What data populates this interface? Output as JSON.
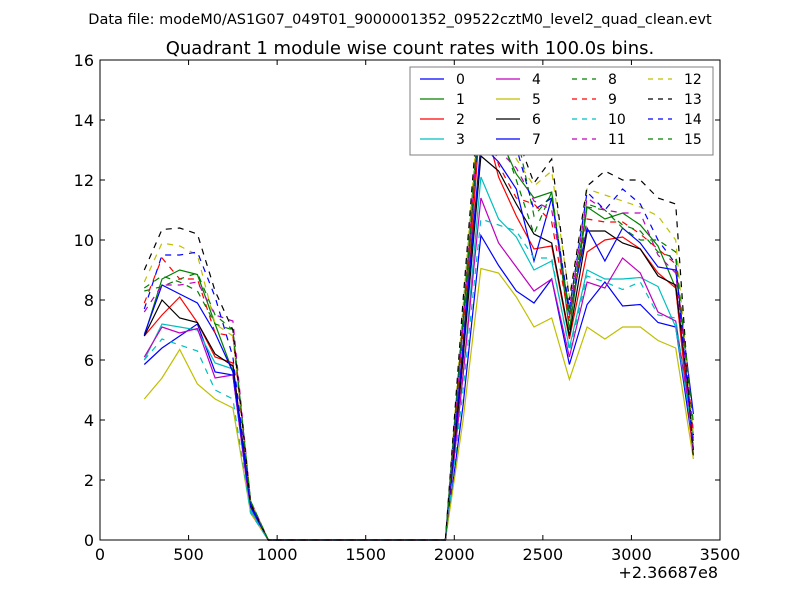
{
  "figure": {
    "suptitle": "Data file: modeM0/AS1G07_049T01_9000001352_09522cztM0_level2_quad_clean.evt",
    "title": "Quadrant 1 module wise count rates with 100.0s bins.",
    "x_offset_label": "+2.36687e8"
  },
  "chart_data": {
    "type": "line",
    "title": "Quadrant 1 module wise count rates with 100.0s bins.",
    "xlabel": "",
    "ylabel": "",
    "xlim": [
      0,
      3500
    ],
    "ylim": [
      0,
      16
    ],
    "x_ticks": [
      0,
      500,
      1000,
      1500,
      2000,
      2500,
      3000,
      3500
    ],
    "y_ticks": [
      0,
      2,
      4,
      6,
      8,
      10,
      12,
      14,
      16
    ],
    "x_tick_labels": [
      "0",
      "500",
      "1000",
      "1500",
      "2000",
      "2500",
      "3000",
      "3500"
    ],
    "y_tick_labels": [
      "0",
      "2",
      "4",
      "6",
      "8",
      "10",
      "12",
      "14",
      "16"
    ],
    "x_offset": "+2.36687e8",
    "grid": false,
    "legend_position": "top-right",
    "legend_columns": 4,
    "x": [
      250,
      350,
      450,
      550,
      650,
      750,
      850,
      950,
      1050,
      1150,
      1250,
      1350,
      1450,
      1550,
      1650,
      1750,
      1850,
      1950,
      2050,
      2150,
      2250,
      2350,
      2450,
      2550,
      2650,
      2750,
      2850,
      2950,
      3050,
      3150,
      3250,
      3350
    ],
    "series": [
      {
        "name": "0",
        "color": "#0000ff",
        "dash": "solid",
        "values": [
          5.85,
          6.4,
          6.8,
          7.2,
          5.6,
          5.5,
          1.0,
          0,
          0,
          0,
          0,
          0,
          0,
          0,
          0,
          0,
          0,
          0,
          4.5,
          10.15,
          9.15,
          8.3,
          7.9,
          8.7,
          5.85,
          7.85,
          8.6,
          7.8,
          7.85,
          7.25,
          7.1,
          3.0
        ]
      },
      {
        "name": "1",
        "color": "#008000",
        "dash": "solid",
        "values": [
          6.8,
          8.7,
          9.0,
          8.85,
          7.2,
          5.6,
          1.2,
          0,
          0,
          0,
          0,
          0,
          0,
          0,
          0,
          0,
          0,
          0,
          6.5,
          15.0,
          13.5,
          12.2,
          11.4,
          11.6,
          7.0,
          11.1,
          10.7,
          10.9,
          10.5,
          9.8,
          8.4,
          3.0
        ]
      },
      {
        "name": "2",
        "color": "#ff0000",
        "dash": "solid",
        "values": [
          6.8,
          7.5,
          8.1,
          7.25,
          6.1,
          5.9,
          1.0,
          0,
          0,
          0,
          0,
          0,
          0,
          0,
          0,
          0,
          0,
          0,
          6.0,
          14.4,
          12.1,
          10.8,
          9.7,
          9.8,
          6.7,
          9.6,
          10.0,
          10.1,
          9.7,
          8.9,
          8.4,
          2.8
        ]
      },
      {
        "name": "3",
        "color": "#00bfbf",
        "dash": "solid",
        "values": [
          6.0,
          7.2,
          7.1,
          7.0,
          5.9,
          5.7,
          1.0,
          0,
          0,
          0,
          0,
          0,
          0,
          0,
          0,
          0,
          0,
          0,
          5.5,
          12.1,
          10.7,
          10.1,
          9.0,
          9.3,
          6.4,
          9.0,
          8.7,
          8.7,
          8.75,
          8.45,
          7.1,
          3.4
        ]
      },
      {
        "name": "4",
        "color": "#bf00bf",
        "dash": "solid",
        "values": [
          6.1,
          7.1,
          6.9,
          7.05,
          5.4,
          5.5,
          0.9,
          0,
          0,
          0,
          0,
          0,
          0,
          0,
          0,
          0,
          0,
          0,
          5.5,
          11.4,
          9.9,
          9.1,
          8.3,
          8.7,
          6.1,
          8.6,
          8.4,
          9.4,
          8.9,
          7.6,
          7.3,
          3.5
        ]
      },
      {
        "name": "5",
        "color": "#bfbf00",
        "dash": "solid",
        "values": [
          4.7,
          5.4,
          6.35,
          5.2,
          4.7,
          4.4,
          0.9,
          0,
          0,
          0,
          0,
          0,
          0,
          0,
          0,
          0,
          0,
          0,
          4.0,
          9.05,
          8.9,
          8.1,
          7.1,
          7.4,
          5.35,
          7.1,
          6.7,
          7.1,
          7.1,
          6.65,
          6.4,
          2.7
        ]
      },
      {
        "name": "6",
        "color": "#000000",
        "dash": "solid",
        "values": [
          6.8,
          8.0,
          7.4,
          7.25,
          6.2,
          5.8,
          1.2,
          0,
          0,
          0,
          0,
          0,
          0,
          0,
          0,
          0,
          0,
          0,
          6.1,
          12.8,
          12.3,
          11.2,
          10.2,
          9.9,
          6.8,
          10.3,
          10.3,
          9.9,
          9.7,
          8.8,
          8.5,
          3.5
        ]
      },
      {
        "name": "7",
        "color": "#0000ff",
        "dash": "solid",
        "values": [
          6.85,
          8.5,
          8.2,
          7.9,
          6.9,
          5.6,
          1.1,
          0,
          0,
          0,
          0,
          0,
          0,
          0,
          0,
          0,
          0,
          0,
          6.5,
          13.2,
          12.6,
          11.7,
          9.3,
          11.4,
          7.5,
          10.4,
          9.3,
          10.4,
          9.9,
          9.1,
          9.0,
          4.2
        ]
      },
      {
        "name": "8",
        "color": "#008000",
        "dash": "dashed",
        "values": [
          8.3,
          8.45,
          8.7,
          8.9,
          7.5,
          7.0,
          1.3,
          0,
          0,
          0,
          0,
          0,
          0,
          0,
          0,
          0,
          0,
          0,
          7.5,
          15.0,
          14.1,
          13.6,
          10.8,
          11.5,
          7.4,
          11.2,
          11.0,
          10.4,
          10.0,
          10.0,
          9.6,
          3.4
        ]
      },
      {
        "name": "9",
        "color": "#ff0000",
        "dash": "dashed",
        "values": [
          7.9,
          9.4,
          8.7,
          8.7,
          6.9,
          6.8,
          1.2,
          0,
          0,
          0,
          0,
          0,
          0,
          0,
          0,
          0,
          0,
          0,
          7.0,
          14.8,
          12.5,
          11.4,
          11.2,
          10.6,
          7.3,
          10.7,
          10.6,
          10.6,
          10.2,
          9.7,
          9.2,
          3.6
        ]
      },
      {
        "name": "10",
        "color": "#00bfbf",
        "dash": "dashed",
        "values": [
          6.0,
          6.7,
          6.5,
          6.3,
          5.0,
          4.7,
          0.9,
          0,
          0,
          0,
          0,
          0,
          0,
          0,
          0,
          0,
          0,
          0,
          5.0,
          10.7,
          10.5,
          10.3,
          9.4,
          9.4,
          6.3,
          8.8,
          8.6,
          8.35,
          8.6,
          7.5,
          7.4,
          3.2
        ]
      },
      {
        "name": "11",
        "color": "#bf00bf",
        "dash": "dashed",
        "values": [
          7.6,
          8.5,
          8.5,
          8.6,
          7.5,
          7.3,
          1.3,
          0,
          0,
          0,
          0,
          0,
          0,
          0,
          0,
          0,
          0,
          0,
          7.2,
          14.9,
          13.0,
          12.4,
          11.3,
          11.0,
          7.7,
          11.4,
          11.0,
          10.9,
          10.9,
          9.5,
          8.9,
          3.3
        ]
      },
      {
        "name": "12",
        "color": "#bfbf00",
        "dash": "dashed",
        "values": [
          8.6,
          9.9,
          9.8,
          9.5,
          7.2,
          6.8,
          1.3,
          0,
          0,
          0,
          0,
          0,
          0,
          0,
          0,
          0,
          0,
          0,
          7.8,
          15.3,
          14.0,
          12.7,
          11.8,
          12.3,
          8.1,
          11.7,
          11.5,
          11.3,
          11.1,
          10.8,
          10.0,
          3.5
        ]
      },
      {
        "name": "13",
        "color": "#000000",
        "dash": "dashed",
        "values": [
          9.0,
          10.35,
          10.4,
          10.2,
          8.3,
          7.0,
          1.2,
          0,
          0,
          0,
          0,
          0,
          0,
          0,
          0,
          0,
          0,
          0,
          8.0,
          15.5,
          14.6,
          13.5,
          11.9,
          12.7,
          8.0,
          11.8,
          12.3,
          12.0,
          12.0,
          11.4,
          11.2,
          2.7
        ]
      },
      {
        "name": "14",
        "color": "#0000ff",
        "dash": "dashed",
        "values": [
          7.7,
          9.5,
          9.5,
          9.6,
          8.1,
          6.1,
          1.2,
          0,
          0,
          0,
          0,
          0,
          0,
          0,
          0,
          0,
          0,
          0,
          7.4,
          14.5,
          14.6,
          13.1,
          11.0,
          11.4,
          7.7,
          11.6,
          11.0,
          11.7,
          11.2,
          10.0,
          9.2,
          3.0
        ]
      },
      {
        "name": "15",
        "color": "#008000",
        "dash": "dashed",
        "values": [
          8.4,
          8.8,
          8.6,
          8.3,
          7.2,
          7.0,
          1.3,
          0,
          0,
          0,
          0,
          0,
          0,
          0,
          0,
          0,
          0,
          0,
          7.3,
          14.8,
          13.7,
          12.0,
          10.2,
          11.6,
          7.5,
          11.1,
          11.0,
          10.5,
          10.3,
          9.6,
          9.4,
          3.9
        ]
      }
    ]
  }
}
